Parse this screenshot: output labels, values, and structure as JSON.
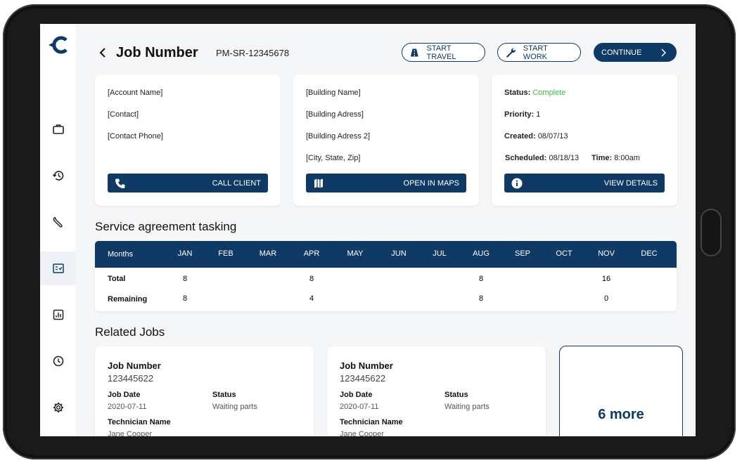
{
  "header": {
    "title": "Job Number",
    "job_id": "PM-SR-12345678",
    "buttons": {
      "start_travel": "START TRAVEL",
      "start_work": "START WORK",
      "continue": "CONTINUE"
    }
  },
  "sidebar": {
    "items": [
      {
        "icon": "briefcase-icon"
      },
      {
        "icon": "history-icon"
      },
      {
        "icon": "wrench-icon"
      },
      {
        "icon": "checklist-icon",
        "active": true
      },
      {
        "icon": "report-icon"
      },
      {
        "icon": "clock-icon"
      },
      {
        "icon": "gear-icon"
      }
    ]
  },
  "cards": {
    "account": {
      "lines": [
        "[Account Name]",
        "[Contact]",
        "[Contact Phone]"
      ],
      "button": "CALL CLIENT"
    },
    "building": {
      "lines": [
        "[Building Name]",
        "[Building Adress]",
        "[Building Adress 2]",
        "[City, State, Zip]"
      ],
      "button": "OPEN IN MAPS"
    },
    "status": {
      "status_label": "Status:",
      "status_value": "Complete",
      "priority_label": "Priority:",
      "priority_value": "1",
      "created_label": "Created:",
      "created_value": "08/07/13",
      "scheduled_label": "Scheduled:",
      "scheduled_value": "08/18/13",
      "time_label": "Time:",
      "time_value": "8:00am",
      "button": "VIEW DETAILS"
    }
  },
  "tasking": {
    "title": "Service agreement tasking",
    "header_label": "Months",
    "months": [
      "JAN",
      "FEB",
      "MAR",
      "APR",
      "MAY",
      "JUN",
      "JUL",
      "AUG",
      "SEP",
      "OCT",
      "NOV",
      "DEC"
    ],
    "rows": [
      {
        "label": "Total",
        "values": [
          "8",
          "",
          "",
          "8",
          "",
          "",
          "",
          "8",
          "",
          "",
          "16",
          ""
        ]
      },
      {
        "label": "Remaining",
        "values": [
          "8",
          "",
          "",
          "4",
          "",
          "",
          "",
          "8",
          "",
          "",
          "0",
          ""
        ]
      }
    ]
  },
  "related": {
    "title": "Related Jobs",
    "jobs": [
      {
        "job_number_label": "Job Number",
        "job_number": "123445622",
        "job_date_label": "Job Date",
        "job_date": "2020-07-11",
        "status_label": "Status",
        "status": "Waiting parts",
        "technician_label": "Technician Name",
        "technician": "Jane Cooper"
      },
      {
        "job_number_label": "Job Number",
        "job_number": "123445622",
        "job_date_label": "Job Date",
        "job_date": "2020-07-11",
        "status_label": "Status",
        "status": "Waiting parts",
        "technician_label": "Technician Name",
        "technician": "Jane Cooper"
      }
    ],
    "more_label": "6 more"
  },
  "colors": {
    "primary": "#0f3a66",
    "status_complete": "#3cc13b"
  }
}
